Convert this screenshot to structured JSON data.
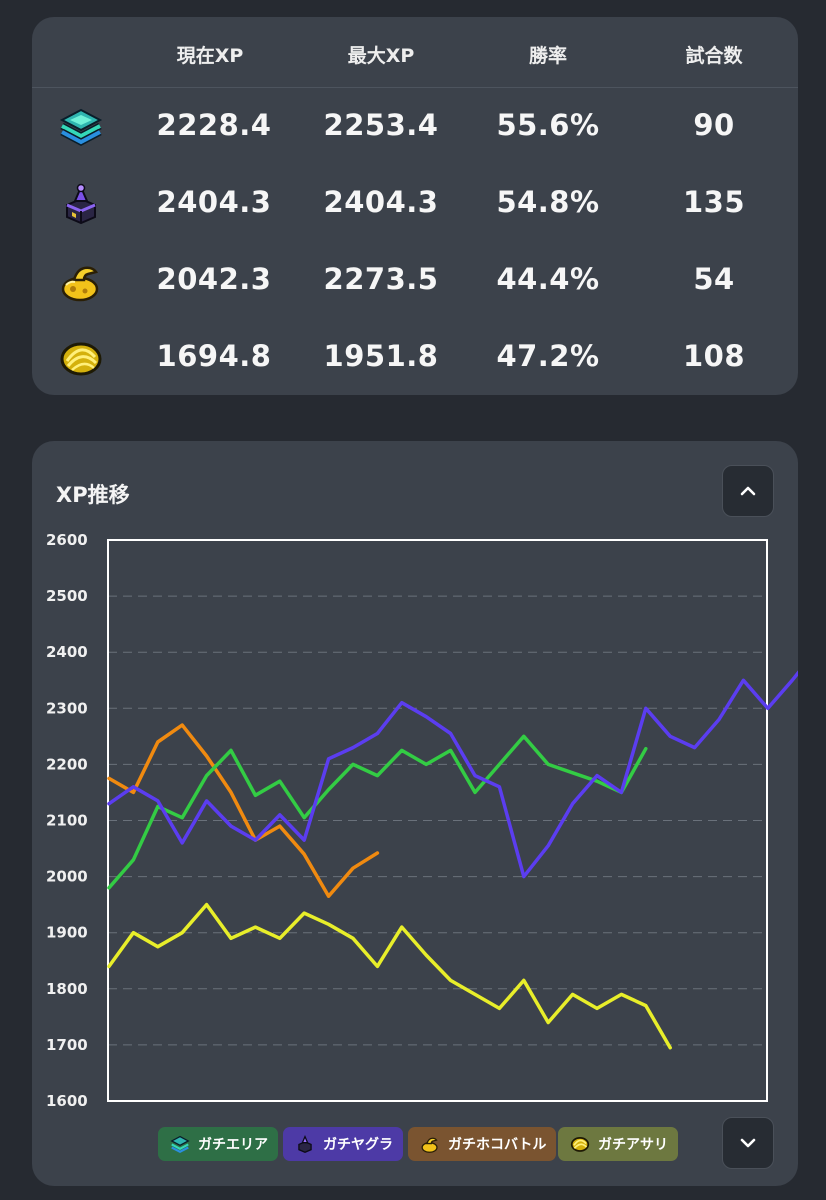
{
  "stats": {
    "columns": [
      "現在XP",
      "最大XP",
      "勝率",
      "試合数"
    ],
    "rows": [
      {
        "mode_icon": "area-icon",
        "current_xp": "2228.4",
        "max_xp": "2253.4",
        "win_rate": "55.6%",
        "matches": "90"
      },
      {
        "mode_icon": "tower-icon",
        "current_xp": "2404.3",
        "max_xp": "2404.3",
        "win_rate": "54.8%",
        "matches": "135"
      },
      {
        "mode_icon": "rainmaker-icon",
        "current_xp": "2042.3",
        "max_xp": "2273.5",
        "win_rate": "44.4%",
        "matches": "54"
      },
      {
        "mode_icon": "clam-icon",
        "current_xp": "1694.8",
        "max_xp": "1951.8",
        "win_rate": "47.2%",
        "matches": "108"
      }
    ]
  },
  "chart_section": {
    "title": "XP推移",
    "collapse_icon": "chevron-up-icon",
    "expand_icon": "chevron-down-icon"
  },
  "chart_data": {
    "type": "line",
    "title": "XP推移",
    "xlabel": "",
    "ylabel": "",
    "ylim": [
      1600,
      2600
    ],
    "yticks": [
      1600,
      1700,
      1800,
      1900,
      2000,
      2100,
      2200,
      2300,
      2400,
      2500,
      2600
    ],
    "grid": true,
    "legend": "bottom",
    "series": [
      {
        "name": "ガチエリア",
        "color": "#33cc44",
        "chip_color": "#2e6f46",
        "icon": "area-icon",
        "values": [
          1980,
          2030,
          2125,
          2105,
          2180,
          2225,
          2145,
          2170,
          2105,
          2155,
          2200,
          2180,
          2225,
          2200,
          2225,
          2150,
          2200,
          2250,
          2200,
          2185,
          2170,
          2150,
          2228
        ]
      },
      {
        "name": "ガチヤグラ",
        "color": "#5b3df0",
        "chip_color": "#4d3aa6",
        "icon": "tower-icon",
        "values": [
          2130,
          2160,
          2135,
          2060,
          2135,
          2090,
          2065,
          2110,
          2065,
          2210,
          2230,
          2255,
          2310,
          2285,
          2255,
          2180,
          2160,
          2000,
          2055,
          2130,
          2180,
          2150,
          2300,
          2250,
          2230,
          2280,
          2350,
          2300,
          2350,
          2404
        ]
      },
      {
        "name": "ガチホコバトル",
        "color": "#f08a10",
        "chip_color": "#7a5430",
        "icon": "rainmaker-icon",
        "values": [
          2175,
          2150,
          2240,
          2270,
          2215,
          2150,
          2065,
          2090,
          2040,
          1965,
          2015,
          2042
        ]
      },
      {
        "name": "ガチアサリ",
        "color": "#e8ee2a",
        "chip_color": "#6d7840",
        "icon": "clam-icon",
        "values": [
          1840,
          1900,
          1875,
          1900,
          1950,
          1890,
          1910,
          1890,
          1935,
          1915,
          1890,
          1840,
          1910,
          1860,
          1815,
          1790,
          1765,
          1815,
          1740,
          1790,
          1765,
          1790,
          1770,
          1695
        ]
      }
    ]
  }
}
